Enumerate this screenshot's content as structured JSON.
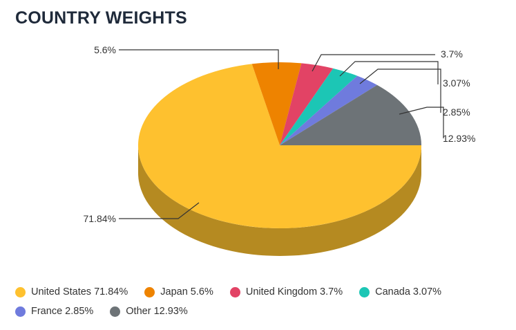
{
  "chart_data": {
    "type": "pie",
    "title": "COUNTRY WEIGHTS",
    "slices": [
      {
        "name": "United States",
        "value": 71.84,
        "label": "71.84%",
        "legend": "United States 71.84%",
        "color": "#FEC12F",
        "side_color": "#B58A21"
      },
      {
        "name": "Japan",
        "value": 5.6,
        "label": "5.6%",
        "legend": "Japan 5.6%",
        "color": "#EE8300",
        "side_color": "#A95D00"
      },
      {
        "name": "United Kingdom",
        "value": 3.7,
        "label": "3.7%",
        "legend": "United Kingdom 3.7%",
        "color": "#E24365",
        "side_color": "#A02F48"
      },
      {
        "name": "Canada",
        "value": 3.07,
        "label": "3.07%",
        "legend": "Canada 3.07%",
        "color": "#1CC6B5",
        "side_color": "#148C80"
      },
      {
        "name": "France",
        "value": 2.85,
        "label": "2.85%",
        "legend": "France 2.85%",
        "color": "#6F7BDD",
        "side_color": "#4F579D"
      },
      {
        "name": "Other",
        "value": 12.93,
        "label": "12.93%",
        "legend": "Other 12.93%",
        "color": "#6D7377",
        "side_color": "#4D5154"
      }
    ],
    "legend_position": "bottom",
    "grid": false
  }
}
